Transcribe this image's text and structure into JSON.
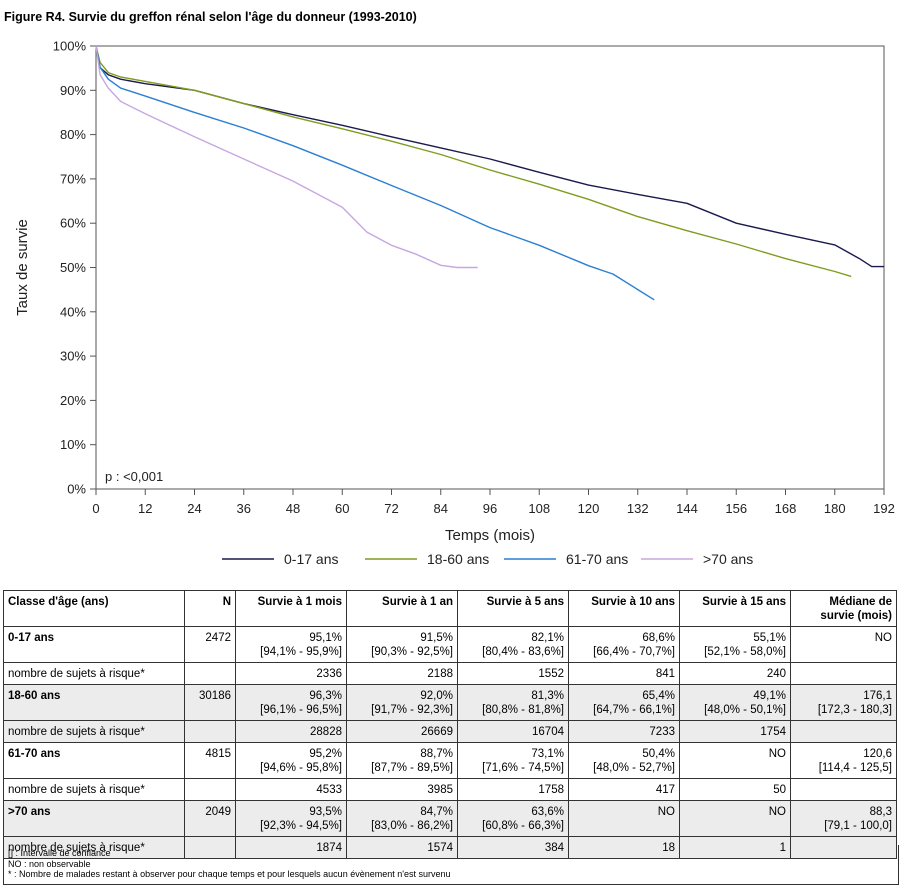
{
  "title": "Figure R4. Survie du greffon rénal selon l'âge du donneur (1993-2010)",
  "chart_data": {
    "type": "line",
    "xlabel": "Temps (mois)",
    "ylabel": "Taux de survie",
    "xlim": [
      0,
      192
    ],
    "ylim": [
      0,
      100
    ],
    "x_ticks": [
      0,
      12,
      24,
      36,
      48,
      60,
      72,
      84,
      96,
      108,
      120,
      132,
      144,
      156,
      168,
      180,
      192
    ],
    "y_ticks": [
      0,
      10,
      20,
      30,
      40,
      50,
      60,
      70,
      80,
      90,
      100
    ],
    "y_tick_labels": [
      "0%",
      "10%",
      "20%",
      "30%",
      "40%",
      "50%",
      "60%",
      "70%",
      "80%",
      "90%",
      "100%"
    ],
    "annotation": "p : <0,001",
    "legend_position": "bottom",
    "grid": false,
    "series": [
      {
        "name": "0-17 ans",
        "color": "#1a1a4e",
        "x": [
          0,
          1,
          3,
          6,
          12,
          24,
          36,
          48,
          60,
          72,
          84,
          96,
          108,
          120,
          132,
          144,
          156,
          168,
          180,
          186,
          189,
          192
        ],
        "y": [
          100,
          95.1,
          93.5,
          92.5,
          91.5,
          90,
          87,
          84.5,
          82.1,
          79.5,
          77,
          74.5,
          71.5,
          68.6,
          66.5,
          64.5,
          60,
          57.5,
          55.1,
          52,
          50.2,
          50.2
        ]
      },
      {
        "name": "18-60 ans",
        "color": "#7f9c1f",
        "x": [
          0,
          1,
          3,
          6,
          12,
          24,
          36,
          48,
          60,
          72,
          84,
          96,
          108,
          120,
          132,
          144,
          156,
          168,
          180,
          184
        ],
        "y": [
          100,
          96.3,
          94,
          93,
          92,
          90,
          87,
          84,
          81.3,
          78.5,
          75.5,
          72,
          68.8,
          65.4,
          61.5,
          58.3,
          55.3,
          52,
          49.1,
          48
        ]
      },
      {
        "name": "61-70 ans",
        "color": "#2a7fd4",
        "x": [
          0,
          1,
          3,
          6,
          12,
          24,
          36,
          48,
          60,
          72,
          84,
          96,
          108,
          120,
          126,
          132,
          136
        ],
        "y": [
          100,
          95.2,
          92.5,
          90.5,
          88.7,
          85,
          81.5,
          77.5,
          73.1,
          68.5,
          64,
          59,
          55,
          50.4,
          48.5,
          45,
          42.7
        ]
      },
      {
        "name": ">70 ans",
        "color": "#c7a7e0",
        "x": [
          0,
          1,
          3,
          6,
          12,
          24,
          36,
          48,
          60,
          66,
          72,
          78,
          84,
          88,
          93
        ],
        "y": [
          100,
          93.5,
          90.5,
          87.5,
          84.7,
          79.5,
          74.5,
          69.5,
          63.6,
          58,
          55,
          53,
          50.5,
          50,
          50
        ]
      }
    ]
  },
  "table": {
    "headers": [
      "Classe d'âge (ans)",
      "N",
      "Survie à 1 mois",
      "Survie à 1 an",
      "Survie à 5 ans",
      "Survie à 10 ans",
      "Survie à 15 ans",
      "Médiane de survie (mois)"
    ],
    "groups": [
      {
        "label": "0-17 ans",
        "n": "2472",
        "values": [
          "95,1%",
          "91,5%",
          "82,1%",
          "68,6%",
          "55,1%",
          "NO"
        ],
        "ci": [
          "[94,1% - 95,9%]",
          "[90,3% - 92,5%]",
          "[80,4% - 83,6%]",
          "[66,4% - 70,7%]",
          "[52,1% - 58,0%]",
          ""
        ],
        "risk_label": "nombre de sujets à risque*",
        "risk": [
          "2336",
          "2188",
          "1552",
          "841",
          "240",
          ""
        ]
      },
      {
        "label": "18-60 ans",
        "n": "30186",
        "values": [
          "96,3%",
          "92,0%",
          "81,3%",
          "65,4%",
          "49,1%",
          "176,1"
        ],
        "ci": [
          "[96,1% - 96,5%]",
          "[91,7% - 92,3%]",
          "[80,8% - 81,8%]",
          "[64,7% - 66,1%]",
          "[48,0% - 50,1%]",
          "[172,3 - 180,3]"
        ],
        "risk_label": "nombre de sujets à risque*",
        "risk": [
          "28828",
          "26669",
          "16704",
          "7233",
          "1754",
          ""
        ]
      },
      {
        "label": "61-70 ans",
        "n": "4815",
        "values": [
          "95,2%",
          "88,7%",
          "73,1%",
          "50,4%",
          "NO",
          "120,6"
        ],
        "ci": [
          "[94,6% - 95,8%]",
          "[87,7% - 89,5%]",
          "[71,6% - 74,5%]",
          "[48,0% - 52,7%]",
          "",
          "[114,4 - 125,5]"
        ],
        "risk_label": "nombre de sujets à risque*",
        "risk": [
          "4533",
          "3985",
          "1758",
          "417",
          "50",
          ""
        ]
      },
      {
        "label": ">70 ans",
        "n": "2049",
        "values": [
          "93,5%",
          "84,7%",
          "63,6%",
          "NO",
          "NO",
          "88,3"
        ],
        "ci": [
          "[92,3% - 94,5%]",
          "[83,0% - 86,2%]",
          "[60,8% - 66,3%]",
          "",
          "",
          "[79,1 - 100,0]"
        ],
        "risk_label": "nombre de sujets à risque*",
        "risk": [
          "1874",
          "1574",
          "384",
          "18",
          "1",
          ""
        ]
      }
    ]
  },
  "notes": [
    "[] : Intervalle de confiance",
    "NO : non observable",
    "* : Nombre de malades restant à observer pour chaque temps et pour lesquels aucun évènement n'est survenu"
  ]
}
